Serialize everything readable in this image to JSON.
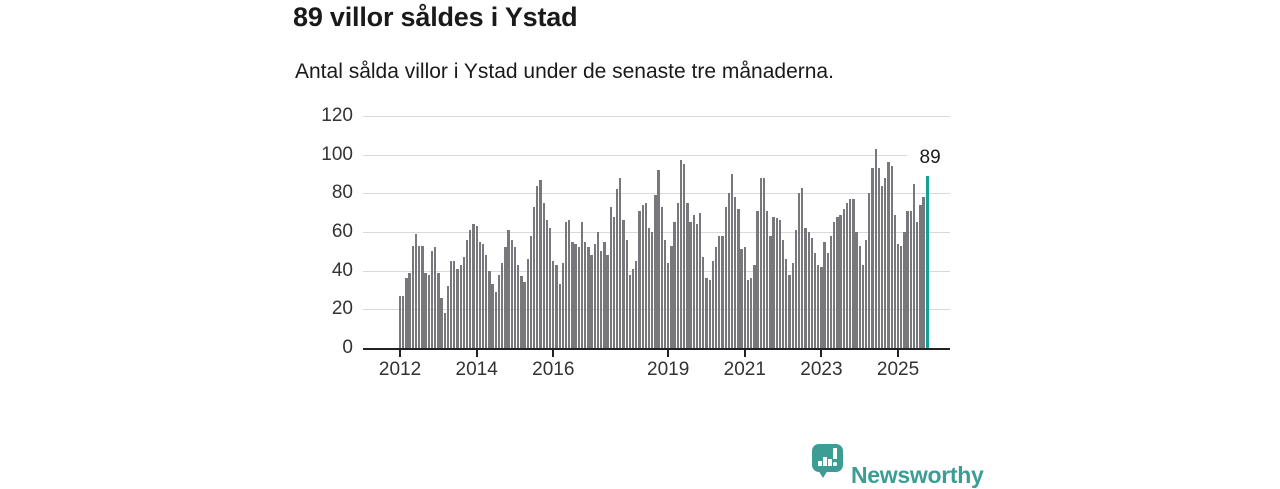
{
  "header": {
    "title": "89 villor såldes i Ystad",
    "subtitle": "Antal sålda villor i Ystad under de senaste tre månaderna."
  },
  "chart_data": {
    "type": "bar",
    "title": "89 villor såldes i Ystad",
    "subtitle": "Antal sålda villor i Ystad under de senaste tre månaderna.",
    "xlabel": "",
    "ylabel": "",
    "ylim": [
      0,
      120
    ],
    "yticks": [
      0,
      20,
      40,
      60,
      80,
      100,
      120
    ],
    "grid": "horizontal",
    "legend_position": "none",
    "x_frequency": "monthly",
    "x_start_label": "2012",
    "x_end_label": "2025",
    "xticks": [
      {
        "label": "2012",
        "month_index": 0
      },
      {
        "label": "2014",
        "month_index": 24
      },
      {
        "label": "2016",
        "month_index": 48
      },
      {
        "label": "2019",
        "month_index": 84
      },
      {
        "label": "2021",
        "month_index": 108
      },
      {
        "label": "2023",
        "month_index": 132
      },
      {
        "label": "2025",
        "month_index": 156
      }
    ],
    "values": [
      27,
      27,
      36,
      39,
      53,
      59,
      53,
      53,
      39,
      38,
      50,
      52,
      39,
      26,
      18,
      32,
      45,
      45,
      41,
      43,
      47,
      56,
      61,
      64,
      63,
      55,
      54,
      48,
      40,
      33,
      29,
      38,
      44,
      52,
      61,
      56,
      52,
      43,
      37,
      34,
      46,
      58,
      73,
      84,
      87,
      75,
      66,
      62,
      45,
      43,
      33,
      44,
      65,
      66,
      55,
      54,
      52,
      65,
      55,
      52,
      48,
      54,
      60,
      50,
      55,
      48,
      73,
      68,
      82,
      88,
      66,
      56,
      38,
      41,
      45,
      71,
      74,
      75,
      62,
      60,
      79,
      92,
      73,
      56,
      44,
      53,
      65,
      75,
      97,
      95,
      75,
      65,
      69,
      64,
      70,
      47,
      36,
      35,
      45,
      52,
      58,
      58,
      73,
      80,
      90,
      78,
      72,
      51,
      52,
      35,
      36,
      43,
      71,
      88,
      88,
      71,
      58,
      68,
      67,
      66,
      56,
      46,
      38,
      44,
      61,
      80,
      83,
      62,
      60,
      57,
      49,
      43,
      42,
      55,
      49,
      58,
      65,
      68,
      69,
      72,
      75,
      77,
      77,
      60,
      53,
      43,
      56,
      80,
      93,
      103,
      93,
      84,
      88,
      96,
      94,
      69,
      54,
      53,
      60,
      71,
      71,
      85,
      65,
      74,
      78,
      89
    ],
    "highlighted_last_value": 89,
    "annotation_label": "89",
    "bar_color": "#77777c",
    "highlight_color": "#12a19a",
    "grid_color": "#d9d9d9",
    "axis_color": "#222222",
    "tick_label_color": "#333333"
  },
  "footer": {
    "brand_name": "Newsworthy",
    "brand_color": "#3c9d95",
    "icon": "newsworthy-bar-chart-bubble-icon"
  }
}
